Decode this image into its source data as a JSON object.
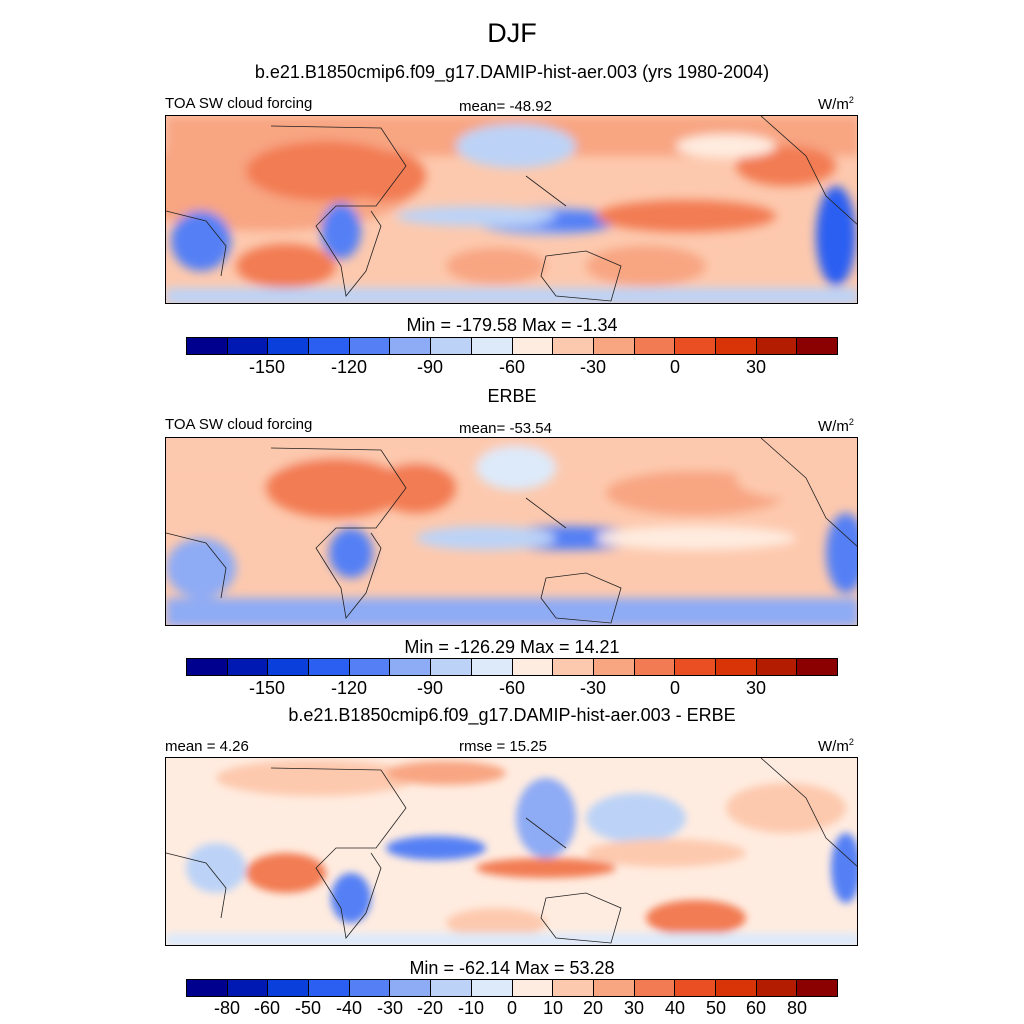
{
  "figure": {
    "title": "DJF"
  },
  "palette": [
    "#00008f",
    "#0019b3",
    "#0a3fdb",
    "#2b5ff2",
    "#5580f5",
    "#8eabf5",
    "#bcd3f7",
    "#ddeafa",
    "#ffece0",
    "#fdc9ae",
    "#f8a582",
    "#f27b53",
    "#ea4e23",
    "#d93408",
    "#b31c00",
    "#8b0000"
  ],
  "panels": [
    {
      "title": "b.e21.B1850cmip6.f09_g17.DAMIP-hist-aer.003 (yrs 1980-2004)",
      "left_label": "TOA SW cloud forcing",
      "center_label": "mean= -48.92",
      "units_base": "W/m",
      "units_exp": "2",
      "stats": "Min = -179.58 Max =  -1.34",
      "ticks": [
        "-150",
        "-120",
        "-90",
        "-60",
        "-30",
        "0",
        "30"
      ]
    },
    {
      "title": "ERBE",
      "left_label": "TOA SW cloud forcing",
      "center_label": "mean= -53.54",
      "units_base": "W/m",
      "units_exp": "2",
      "stats": "Min = -126.29 Max =  14.21",
      "ticks": [
        "-150",
        "-120",
        "-90",
        "-60",
        "-30",
        "0",
        "30"
      ]
    },
    {
      "title": "b.e21.B1850cmip6.f09_g17.DAMIP-hist-aer.003 - ERBE",
      "left_label": "mean =   4.26",
      "center_label": "rmse =  15.25",
      "units_base": "W/m",
      "units_exp": "2",
      "stats": "Min = -62.14 Max =  53.28",
      "ticks": [
        "-80",
        "-60",
        "-50",
        "-40",
        "-30",
        "-20",
        "-10",
        "0",
        "10",
        "20",
        "30",
        "40",
        "50",
        "60",
        "80"
      ]
    }
  ]
}
